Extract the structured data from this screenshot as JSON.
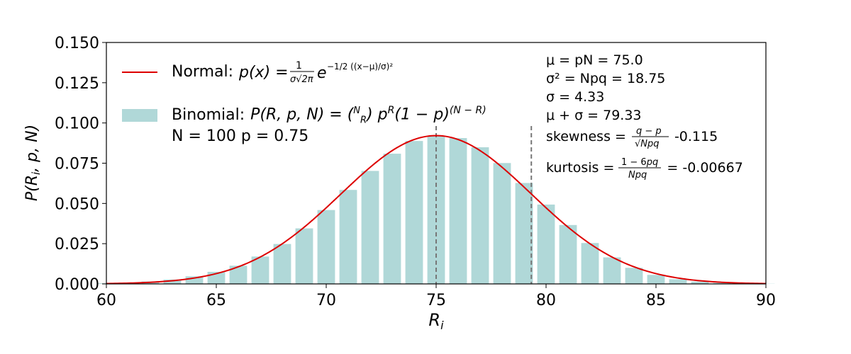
{
  "chart_data": {
    "type": "bar",
    "xlabel": "R_i",
    "ylabel": "P(R_i, p, N)",
    "xlim": [
      60,
      90
    ],
    "ylim": [
      0.0,
      0.15
    ],
    "x_ticks": [
      "60",
      "65",
      "70",
      "75",
      "80",
      "85",
      "90"
    ],
    "y_ticks": [
      "0.000",
      "0.025",
      "0.050",
      "0.075",
      "0.100",
      "0.125",
      "0.150"
    ],
    "grid": false,
    "legend_position": "upper-left",
    "series": [
      {
        "name": "Binomial: P(R, p, N) = (N choose R) p^R (1 − p)^(N − R)",
        "type": "bar",
        "color": "#b0d8d8",
        "x": [
          60,
          61,
          62,
          63,
          64,
          65,
          66,
          67,
          68,
          69,
          70,
          71,
          72,
          73,
          74,
          75,
          76,
          77,
          78,
          79,
          80,
          81,
          82,
          83,
          84,
          85,
          86,
          87,
          88,
          89,
          90
        ],
        "values": [
          0.0004,
          0.0008,
          0.0015,
          0.0027,
          0.0047,
          0.0075,
          0.0113,
          0.017,
          0.0248,
          0.0345,
          0.0459,
          0.0584,
          0.0702,
          0.0809,
          0.0888,
          0.0918,
          0.0906,
          0.0849,
          0.0751,
          0.0627,
          0.0493,
          0.0366,
          0.0254,
          0.0165,
          0.01,
          0.0056,
          0.0029,
          0.0014,
          0.0006,
          0.0002,
          0.0001
        ]
      },
      {
        "name": "Normal: p(x) = 1/(σ√(2π)) e^(−1/2 ((x−μ)/σ)^2)",
        "type": "line",
        "color": "#dd0000",
        "mu": 75.0,
        "sigma": 4.33
      }
    ],
    "reference_lines": [
      {
        "x": 75.0,
        "style": "dashed",
        "color": "#777777"
      },
      {
        "x": 79.33,
        "style": "dashed",
        "color": "#777777"
      }
    ],
    "legend": {
      "normal_label": "Normal:",
      "binomial_label": "Binomial:",
      "binomial_params": "N = 100  p = 0.75"
    },
    "annotations": {
      "mu": "μ = pN = 75.0",
      "variance": "σ² = Npq = 18.75",
      "sigma": "σ = 4.33",
      "mu_plus_sigma": "μ + σ = 79.33",
      "skewness_label": "skewness =",
      "skewness_value": "-0.115",
      "kurtosis_label": "kurtosis =",
      "kurtosis_value": "= -0.00667"
    }
  }
}
